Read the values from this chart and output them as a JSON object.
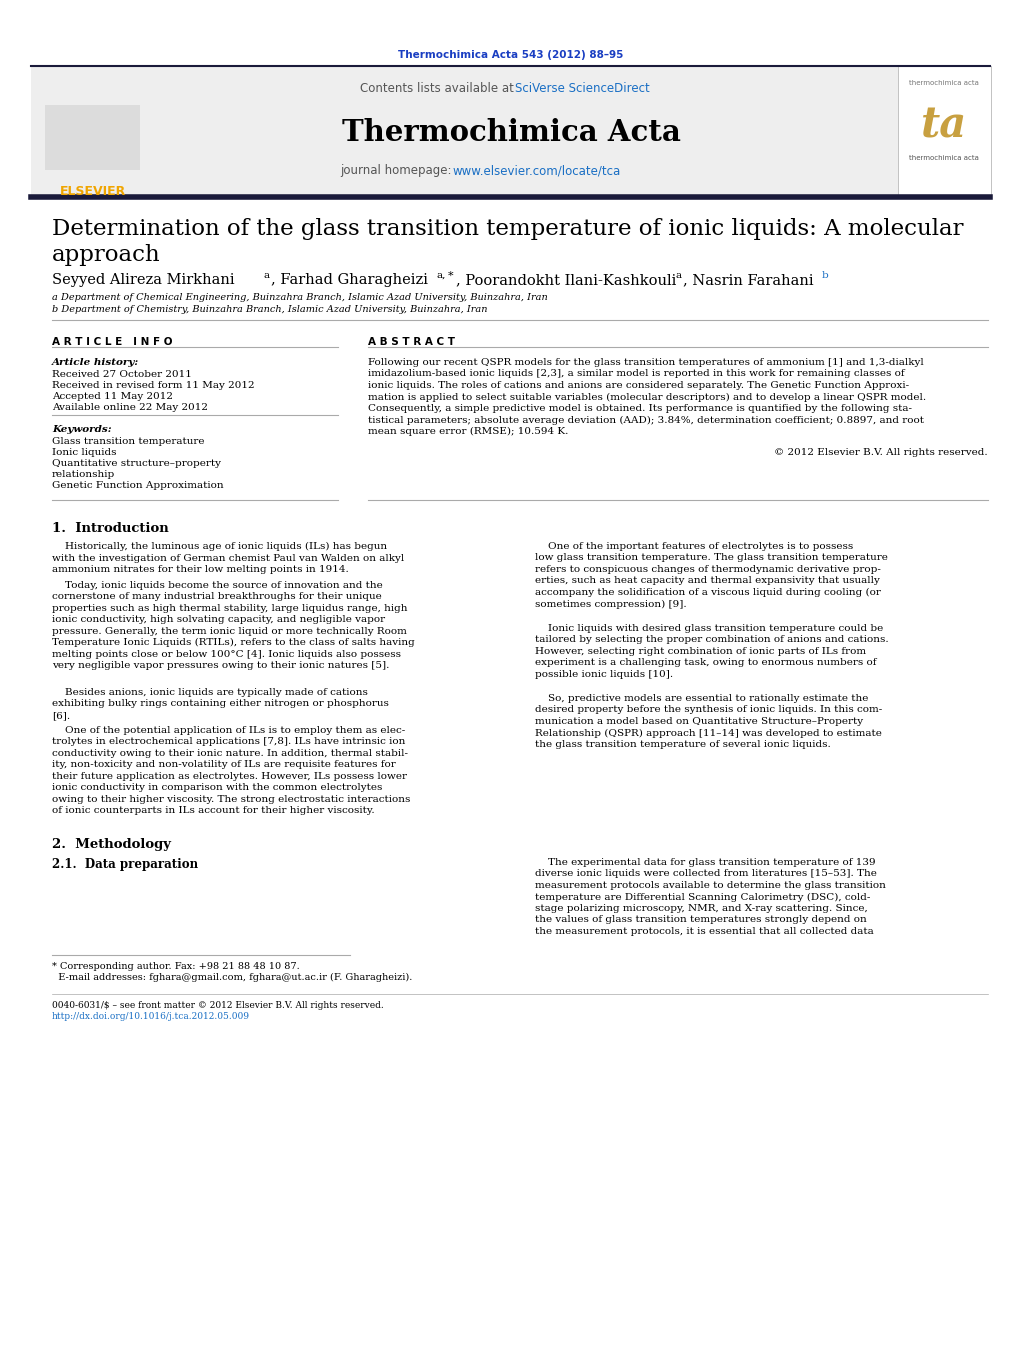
{
  "journal_ref": "Thermochimica Acta 543 (2012) 88–95",
  "journal_name": "Thermochimica Acta",
  "contents_line_plain": "Contents lists available at ",
  "contents_line_link": "SciVerse ScienceDirect",
  "homepage_plain": "journal homepage: ",
  "homepage_link": "www.elsevier.com/locate/tca",
  "title_line1": "Determination of the glass transition temperature of ionic liquids: A molecular",
  "title_line2": "approach",
  "author_line": "Seyyed Alireza Mirkhani",
  "affil_a": "a Department of Chemical Engineering, Buinzahra Branch, Islamic Azad University, Buinzahra, Iran",
  "affil_b": "b Department of Chemistry, Buinzahra Branch, Islamic Azad University, Buinzahra, Iran",
  "art_info_header": "A R T I C L E   I N F O",
  "abstract_header": "A B S T R A C T",
  "article_history_label": "Article history:",
  "received": "Received 27 October 2011",
  "revised": "Received in revised form 11 May 2012",
  "accepted": "Accepted 11 May 2012",
  "online": "Available online 22 May 2012",
  "keywords_label": "Keywords:",
  "keyword1": "Glass transition temperature",
  "keyword2": "Ionic liquids",
  "keyword3": "Quantitative structure–property",
  "keyword3b": "relationship",
  "keyword4": "Genetic Function Approximation",
  "abstract_text": "Following our recent QSPR models for the glass transition temperatures of ammonium [1] and 1,3-dialkyl\nimidazolium-based ionic liquids [2,3], a similar model is reported in this work for remaining classes of\nionic liquids. The roles of cations and anions are considered separately. The Genetic Function Approxi-\nmation is applied to select suitable variables (molecular descriptors) and to develop a linear QSPR model.\nConsequently, a simple predictive model is obtained. Its performance is quantified by the following sta-\ntistical parameters; absolute average deviation (AAD); 3.84%, determination coefficient; 0.8897, and root\nmean square error (RMSE); 10.594 K.",
  "copyright": "© 2012 Elsevier B.V. All rights reserved.",
  "section1_header": "1.  Introduction",
  "p1_col1": "    Historically, the luminous age of ionic liquids (ILs) has begun\nwith the investigation of German chemist Paul van Walden on alkyl\nammonium nitrates for their low melting points in 1914.",
  "p2_col1": "    Today, ionic liquids become the source of innovation and the\ncornerstone of many industrial breakthroughs for their unique\nproperties such as high thermal stability, large liquidus range, high\nionic conductivity, high solvating capacity, and negligible vapor\npressure. Generally, the term ionic liquid or more technically Room\nTemperature Ionic Liquids (RTILs), refers to the class of salts having\nmelting points close or below 100°C [4]. Ionic liquids also possess\nvery negligible vapor pressures owing to their ionic natures [5].",
  "p3_col1": "    Besides anions, ionic liquids are typically made of cations\nexhibiting bulky rings containing either nitrogen or phosphorus\n[6].",
  "p4_col1": "    One of the potential application of ILs is to employ them as elec-\ntrolytes in electrochemical applications [7,8]. ILs have intrinsic ion\nconductivity owing to their ionic nature. In addition, thermal stabil-\nity, non-toxicity and non-volatility of ILs are requisite features for\ntheir future application as electrolytes. However, ILs possess lower\nionic conductivity in comparison with the common electrolytes\nowing to their higher viscosity. The strong electrostatic interactions\nof ionic counterparts in ILs account for their higher viscosity.",
  "p1_col2": "    One of the important features of electrolytes is to possess\nlow glass transition temperature. The glass transition temperature\nrefers to conspicuous changes of thermodynamic derivative prop-\nerties, such as heat capacity and thermal expansivity that usually\naccompany the solidification of a viscous liquid during cooling (or\nsometimes compression) [9].",
  "p2_col2": "    Ionic liquids with desired glass transition temperature could be\ntailored by selecting the proper combination of anions and cations.\nHowever, selecting right combination of ionic parts of ILs from\nexperiment is a challenging task, owing to enormous numbers of\npossible ionic liquids [10].",
  "p3_col2": "    So, predictive models are essential to rationally estimate the\ndesired property before the synthesis of ionic liquids. In this com-\nmunication a model based on Quantitative Structure–Property\nRelationship (QSPR) approach [11–14] was developed to estimate\nthe glass transition temperature of several ionic liquids.",
  "section2_header": "2.  Methodology",
  "section21_header": "2.1.  Data preparation",
  "section21_col2": "    The experimental data for glass transition temperature of 139\ndiverse ionic liquids were collected from literatures [15–53]. The\nmeasurement protocols available to determine the glass transition\ntemperature are Differential Scanning Calorimetry (DSC), cold-\nstage polarizing microscopy, NMR, and X-ray scattering. Since,\nthe values of glass transition temperatures strongly depend on\nthe measurement protocols, it is essential that all collected data",
  "footnote1": "* Corresponding author. Fax: +98 21 88 48 10 87.",
  "footnote2": "  E-mail addresses: fghara@gmail.com, fghara@ut.ac.ir (F. Gharagheizi).",
  "footer1": "0040-6031/$ – see front matter © 2012 Elsevier B.V. All rights reserved.",
  "footer2": "http://dx.doi.org/10.1016/j.tca.2012.05.009",
  "bg_color": "#ffffff",
  "header_bg": "#eeeeee",
  "dark_bar": "#1a1a3a",
  "link_color": "#1a6fc4",
  "jref_color": "#1a3ec2",
  "orange": "#f0a500",
  "ta_color": "#c8a040",
  "gray_rule": "#aaaaaa"
}
